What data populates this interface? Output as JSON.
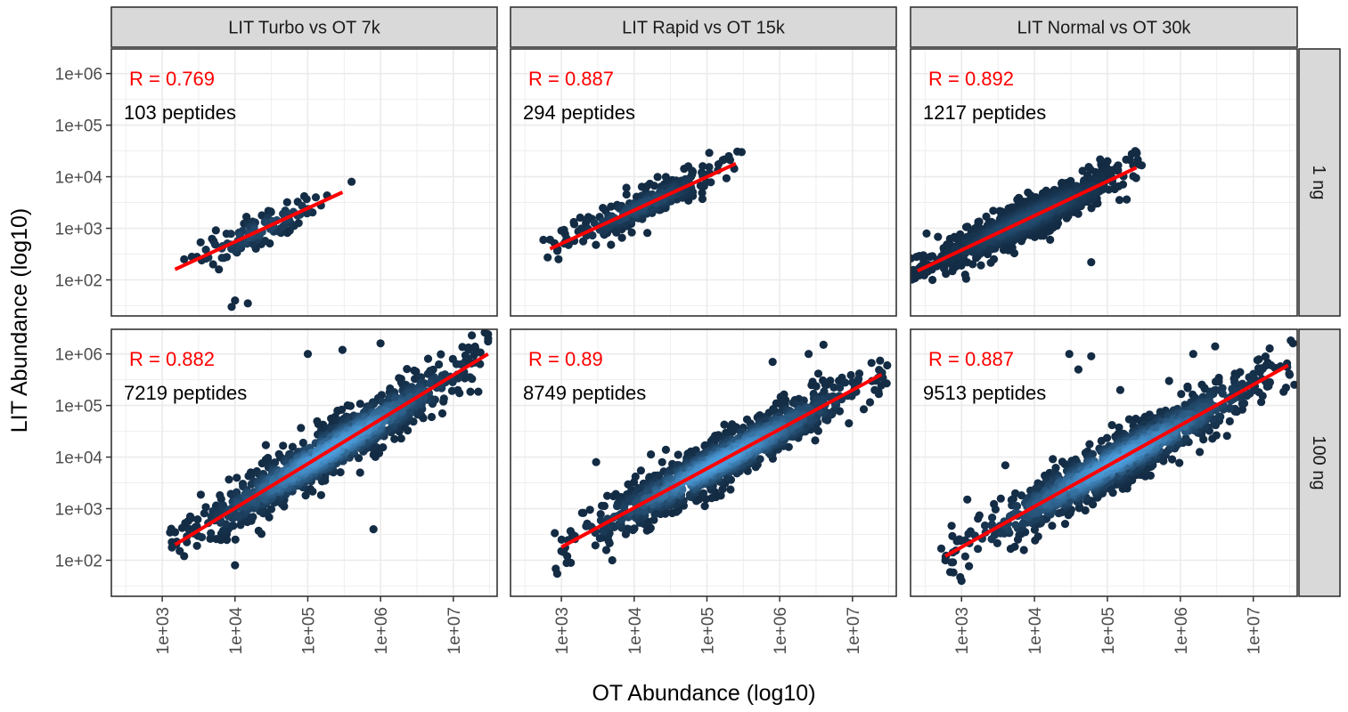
{
  "chart_data": {
    "type": "scatter",
    "x_label": "OT Abundance (log10)",
    "y_label": "LIT Abundance (log10)",
    "x_scale": "log10",
    "y_scale": "log10",
    "x_range": [
      200,
      40000000
    ],
    "y_range": [
      20,
      3000000
    ],
    "x_ticks": [
      1000,
      10000,
      100000,
      1000000,
      10000000
    ],
    "x_tick_labels": [
      "1e+03",
      "1e+04",
      "1e+05",
      "1e+06",
      "1e+07"
    ],
    "y_ticks": [
      100,
      1000,
      10000,
      100000,
      1000000
    ],
    "y_tick_labels": [
      "1e+02",
      "1e+03",
      "1e+04",
      "1e+05",
      "1e+06"
    ],
    "grid": true,
    "column_strips": [
      "LIT Turbo vs OT 7k",
      "LIT Rapid vs OT 15k",
      "LIT Normal vs OT 30k"
    ],
    "row_strips": [
      "1 ng",
      "100 ng"
    ],
    "colors": {
      "point_dark": "#132b43",
      "point_light": "#56b1f7",
      "fit_line": "#ff0000",
      "strip_fill": "#d9d9d9",
      "grid": "#ebebeb"
    },
    "panels": [
      {
        "col": 0,
        "row": 0,
        "r_text": "R = 0.769",
        "n_text": "103 peptides",
        "n_points": 103,
        "fit_x": [
          1500,
          300000
        ],
        "fit_y": [
          160,
          5000
        ],
        "spread": 0.18,
        "outliers": [
          [
            2000,
            250
          ],
          [
            3000,
            280
          ],
          [
            5000,
            200
          ],
          [
            9000,
            30
          ],
          [
            10000,
            40
          ],
          [
            15000,
            35
          ],
          [
            6000,
            160
          ],
          [
            400000,
            8000
          ]
        ]
      },
      {
        "col": 1,
        "row": 0,
        "r_text": "R = 0.887",
        "n_text": "294 peptides",
        "n_points": 294,
        "fit_x": [
          700,
          250000
        ],
        "fit_y": [
          400,
          18000
        ],
        "spread": 0.16,
        "outliers": [
          [
            700,
            600
          ],
          [
            1000,
            900
          ],
          [
            1500,
            1200
          ],
          [
            300000,
            30000
          ],
          [
            200000,
            25000
          ]
        ]
      },
      {
        "col": 2,
        "row": 0,
        "r_text": "R = 0.892",
        "n_text": "1217 peptides",
        "n_points": 1217,
        "fit_x": [
          250,
          250000
        ],
        "fit_y": [
          150,
          15000
        ],
        "spread": 0.18,
        "outliers": [
          [
            60000,
            220
          ],
          [
            250,
            120
          ],
          [
            300,
            300
          ],
          [
            400,
            100
          ],
          [
            250000,
            30000
          ],
          [
            100000,
            20000
          ]
        ]
      },
      {
        "col": 0,
        "row": 1,
        "r_text": "R = 0.882",
        "n_text": "7219 peptides",
        "n_points": 7219,
        "fit_x": [
          1500,
          30000000
        ],
        "fit_y": [
          200,
          1000000
        ],
        "spread": 0.26,
        "outliers": [
          [
            1500,
            350
          ],
          [
            30000000,
            2400000
          ],
          [
            300000,
            1200000
          ],
          [
            1000000,
            1600000
          ],
          [
            800000,
            400
          ],
          [
            10000,
            80
          ],
          [
            2000,
            120
          ],
          [
            100000,
            1000000
          ]
        ]
      },
      {
        "col": 1,
        "row": 1,
        "r_text": "R = 0.89",
        "n_text": "8749 peptides",
        "n_points": 8749,
        "fit_x": [
          1000,
          25000000
        ],
        "fit_y": [
          180,
          400000
        ],
        "spread": 0.24,
        "outliers": [
          [
            1000,
            150
          ],
          [
            5000,
            100
          ],
          [
            3000,
            8000
          ],
          [
            800000,
            700000
          ],
          [
            2500000,
            1000000
          ],
          [
            4000000,
            1500000
          ],
          [
            30000000,
            600000
          ]
        ]
      },
      {
        "col": 2,
        "row": 1,
        "r_text": "R = 0.887",
        "n_text": "9513 peptides",
        "n_points": 9513,
        "fit_x": [
          600,
          30000000
        ],
        "fit_y": [
          120,
          600000
        ],
        "spread": 0.26,
        "outliers": [
          [
            600,
            100
          ],
          [
            1000,
            40
          ],
          [
            1200,
            1500
          ],
          [
            40000,
            500000
          ],
          [
            30000,
            1000000
          ],
          [
            60000,
            900000
          ],
          [
            150000,
            200000
          ],
          [
            700000,
            300000
          ],
          [
            1500000,
            1000000
          ],
          [
            35000000,
            1600000
          ],
          [
            3000000,
            1400000
          ]
        ]
      }
    ]
  }
}
